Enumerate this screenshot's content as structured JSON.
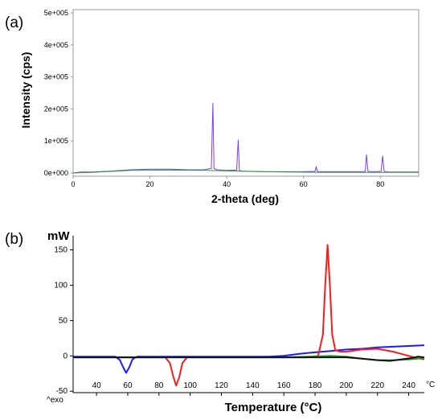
{
  "chart_data": [
    {
      "panel_label": "(a)",
      "type": "line",
      "xlabel": "2-theta (deg)",
      "ylabel": "Intensity (cps)",
      "xlim": [
        0,
        90
      ],
      "ylim": [
        -10000,
        510000
      ],
      "x_ticks": [
        0,
        20,
        40,
        60,
        80
      ],
      "x_tick_labels": [
        "0",
        "20",
        "40",
        "60",
        "80"
      ],
      "y_ticks": [
        0,
        100000,
        200000,
        300000,
        400000,
        500000
      ],
      "y_tick_labels": [
        "0e+000",
        "1e+005",
        "2e+005",
        "3e+005",
        "4e+005",
        "5e+005"
      ],
      "grid": false,
      "series": [
        {
          "color": "#7a3cff",
          "x": [
            0,
            2,
            5,
            10,
            15,
            20,
            25,
            30,
            34,
            36,
            36.4,
            36.7,
            37.0,
            37.4,
            40,
            42.6,
            43.0,
            43.3,
            44,
            50,
            55,
            60,
            63,
            63.3,
            63.6,
            64,
            70,
            75,
            76.1,
            76.4,
            76.8,
            78,
            80.2,
            80.6,
            81.0,
            82,
            85,
            90
          ],
          "y": [
            0,
            3000,
            3000,
            6000,
            10000,
            12000,
            12000,
            10000,
            10000,
            14000,
            218000,
            14000,
            12000,
            10000,
            8000,
            9000,
            103000,
            8000,
            6000,
            4000,
            4000,
            4000,
            5000,
            20000,
            5000,
            4000,
            4000,
            4000,
            5000,
            57000,
            5000,
            4000,
            5000,
            53000,
            5000,
            3000,
            3000,
            3000
          ]
        },
        {
          "color": "#2aa02a",
          "x": [
            0,
            5,
            15,
            25,
            35,
            45,
            55,
            65,
            75,
            85,
            90
          ],
          "y": [
            0,
            2000,
            8000,
            9000,
            8000,
            5000,
            3000,
            2000,
            2000,
            2000,
            2000
          ]
        }
      ]
    },
    {
      "panel_label": "(b)",
      "type": "line",
      "xlabel": "Temperature (°C)",
      "ylabel": "mW",
      "x_unit": "°C",
      "exo_label": "^exo",
      "xlim": [
        25,
        250
      ],
      "ylim": [
        -52,
        170
      ],
      "x_ticks": [
        40,
        60,
        80,
        100,
        120,
        140,
        160,
        180,
        200,
        220,
        240
      ],
      "x_tick_labels": [
        "40",
        "60",
        "80",
        "100",
        "120",
        "140",
        "160",
        "180",
        "200",
        "220",
        "240"
      ],
      "y_ticks": [
        -50,
        0,
        50,
        100,
        150
      ],
      "y_tick_labels": [
        "-50",
        "0",
        "50",
        "100",
        "150"
      ],
      "grid": false,
      "series": [
        {
          "color": "#1a1aff",
          "x": [
            25,
            52,
            55,
            57,
            59,
            61,
            63,
            66,
            100,
            150,
            160,
            170,
            180,
            190,
            200,
            210,
            220,
            230,
            240,
            250
          ],
          "y": [
            -1,
            -1,
            -6,
            -16,
            -24,
            -16,
            -5,
            -1,
            -1,
            -1,
            0,
            3,
            5,
            7,
            9,
            10,
            12,
            13,
            14,
            15
          ]
        },
        {
          "color": "#ff1a1a",
          "x": [
            25,
            84,
            87,
            89,
            91,
            93,
            95,
            98,
            150,
            175,
            182,
            185,
            186.5,
            188,
            189.5,
            191,
            193,
            196,
            200,
            210,
            220,
            230,
            235,
            240,
            245,
            250
          ],
          "y": [
            -2,
            -2,
            -10,
            -28,
            -42,
            -30,
            -10,
            -2,
            -2,
            -2,
            0,
            30,
            100,
            157,
            100,
            30,
            8,
            6,
            6,
            9,
            10,
            6,
            3,
            0,
            -3,
            -5
          ]
        },
        {
          "color": "#2aa02a",
          "x": [
            25,
            100,
            160,
            175,
            190,
            200,
            210,
            220,
            230,
            240,
            250
          ],
          "y": [
            -2,
            -2,
            -2,
            -1,
            0,
            -1,
            -4,
            -6,
            -6,
            -5,
            -3
          ]
        },
        {
          "color": "#111111",
          "x": [
            25,
            100,
            160,
            180,
            200,
            210,
            220,
            228,
            235,
            242,
            246,
            250
          ],
          "y": [
            -2,
            -2,
            -2,
            -2,
            -2,
            -4,
            -6,
            -7,
            -5,
            -3,
            -1,
            -2
          ]
        }
      ]
    }
  ]
}
